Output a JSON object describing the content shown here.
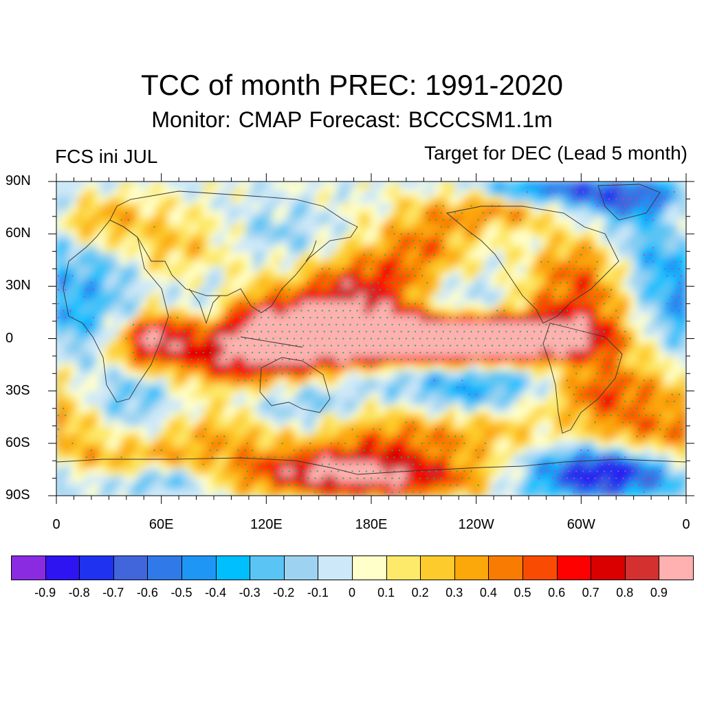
{
  "title": "TCC of month PREC: 1991-2020",
  "subtitle": "Monitor: CMAP   Forecast: BCCCSM1.1m",
  "left_label": "FCS ini JUL",
  "right_label": "Target for DEC (Lead 5 month)",
  "lat_labels": [
    "90N",
    "60N",
    "30N",
    "0",
    "30S",
    "60S",
    "90S"
  ],
  "lon_labels": [
    "0",
    "60E",
    "120E",
    "180E",
    "120W",
    "60W",
    "0"
  ],
  "colorbar": {
    "colors": [
      "#8a2be2",
      "#2f14f2",
      "#1e32f0",
      "#4166dc",
      "#2f7ae8",
      "#1e96f5",
      "#00bfff",
      "#5ac4f4",
      "#9dd3f1",
      "#cde8f8",
      "#ffffc9",
      "#fde96a",
      "#fdcc2c",
      "#fca70a",
      "#f97b02",
      "#f94b02",
      "#ff0000",
      "#d90000",
      "#d43030",
      "#ffb0b0"
    ],
    "labels": [
      "-0.9",
      "-0.8",
      "-0.7",
      "-0.6",
      "-0.5",
      "-0.4",
      "-0.3",
      "-0.2",
      "-0.1",
      "0",
      "0.1",
      "0.2",
      "0.3",
      "0.4",
      "0.5",
      "0.6",
      "0.7",
      "0.8",
      "0.9"
    ]
  }
}
